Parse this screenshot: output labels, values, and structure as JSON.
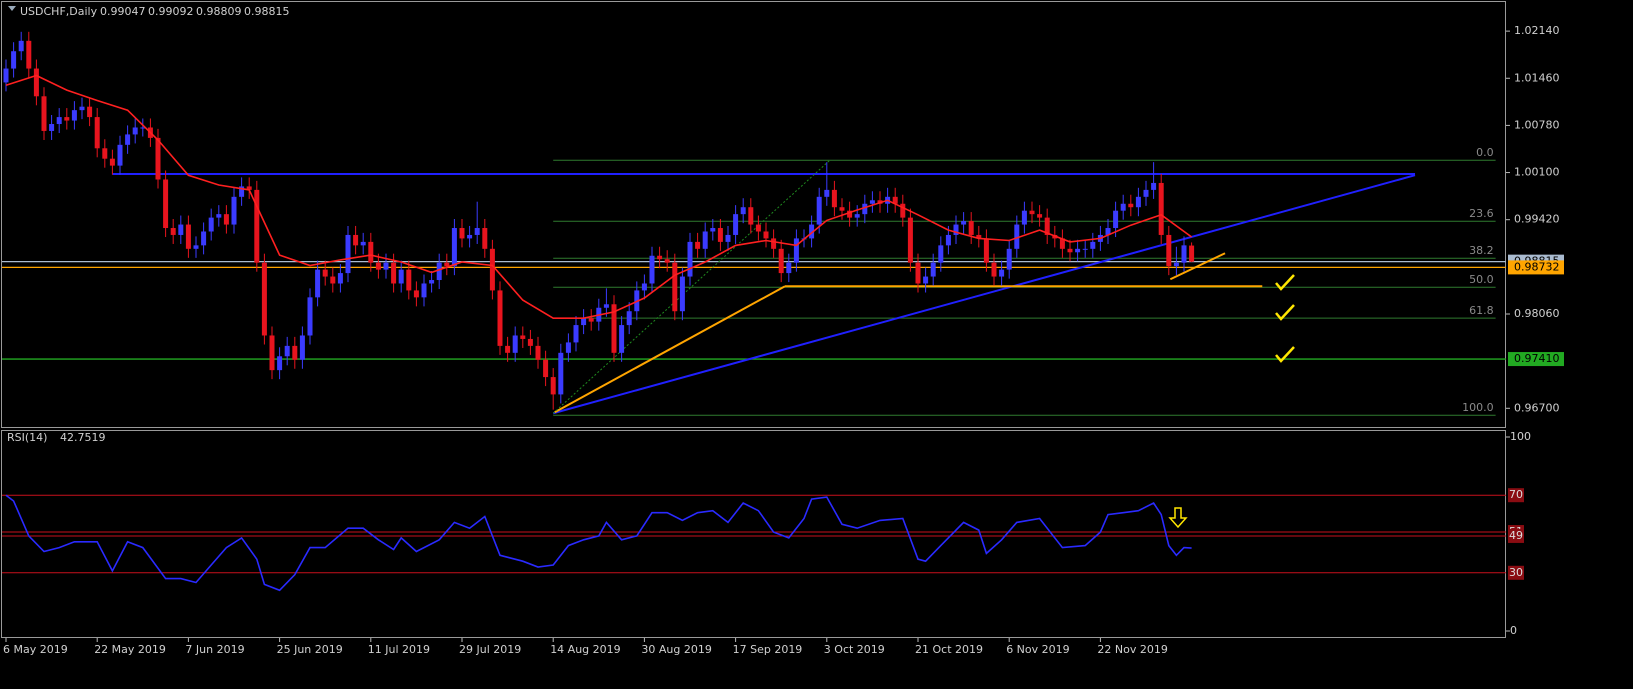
{
  "chart_data": {
    "type": "candlestick",
    "symbol": "USDCHF,Daily",
    "header_values": [
      0.99047,
      0.99092,
      0.98809,
      0.98815
    ],
    "ylim": [
      0.9643,
      1.0256
    ],
    "yticks": [
      {
        "value": 1.0214,
        "label": "1.02140"
      },
      {
        "value": 1.0146,
        "label": "1.01460"
      },
      {
        "value": 1.0078,
        "label": "1.00780"
      },
      {
        "value": 1.001,
        "label": "1.00100"
      },
      {
        "value": 0.9942,
        "label": "0.99420"
      },
      {
        "value": 0.9806,
        "label": "0.98060"
      },
      {
        "value": 0.967,
        "label": "0.96700"
      }
    ],
    "price_markers": [
      {
        "value": 0.98815,
        "label": "0.98815",
        "color": "#aabbd0"
      },
      {
        "value": 0.98732,
        "label": "0.98732",
        "color": "#ffa500"
      },
      {
        "value": 0.9741,
        "label": "0.97410",
        "color": "#22aa22"
      }
    ],
    "bull_color": "#3b3bff",
    "bear_color": "#e8141e",
    "candles": [
      [
        1.014,
        1.0173,
        1.0127,
        1.016
      ],
      [
        1.016,
        1.0198,
        1.0147,
        1.0185
      ],
      [
        1.0185,
        1.0213,
        1.0172,
        1.02
      ],
      [
        1.02,
        1.0213,
        1.0147,
        1.016
      ],
      [
        1.016,
        1.0173,
        1.0107,
        1.012
      ],
      [
        1.012,
        1.0133,
        1.0057,
        1.007
      ],
      [
        1.007,
        1.0093,
        1.0057,
        1.008
      ],
      [
        1.008,
        1.0103,
        1.0067,
        1.009
      ],
      [
        1.009,
        1.0103,
        1.0072,
        1.0085
      ],
      [
        1.0085,
        1.0113,
        1.0072,
        1.01
      ],
      [
        1.01,
        1.0118,
        1.0087,
        1.0105
      ],
      [
        1.0105,
        1.0118,
        1.0077,
        1.009
      ],
      [
        1.009,
        1.0103,
        1.0032,
        1.0045
      ],
      [
        1.0045,
        1.0058,
        1.0017,
        1.003
      ],
      [
        1.003,
        1.0043,
        1.0007,
        1.002
      ],
      [
        1.002,
        1.0063,
        1.0007,
        1.005
      ],
      [
        1.005,
        1.0078,
        1.0037,
        1.0065
      ],
      [
        1.0065,
        1.0088,
        1.0052,
        1.0075
      ],
      [
        1.0075,
        1.0088,
        1.0062,
        1.0075
      ],
      [
        1.0075,
        1.0088,
        1.0047,
        1.006
      ],
      [
        1.006,
        1.0073,
        0.9987,
        1.0
      ],
      [
        1.0,
        1.0013,
        0.9917,
        0.993
      ],
      [
        0.993,
        0.9943,
        0.9907,
        0.992
      ],
      [
        0.992,
        0.9948,
        0.9907,
        0.9935
      ],
      [
        0.9935,
        0.9948,
        0.9887,
        0.99
      ],
      [
        0.99,
        0.9918,
        0.9887,
        0.9905
      ],
      [
        0.9905,
        0.9938,
        0.9892,
        0.9925
      ],
      [
        0.9925,
        0.9958,
        0.9912,
        0.9945
      ],
      [
        0.9945,
        0.9963,
        0.9932,
        0.995
      ],
      [
        0.995,
        0.9963,
        0.9922,
        0.9935
      ],
      [
        0.9935,
        0.9988,
        0.9922,
        0.9975
      ],
      [
        0.9975,
        1.0003,
        0.9962,
        0.999
      ],
      [
        0.999,
        1.0003,
        0.9972,
        0.9985
      ],
      [
        0.9985,
        0.9998,
        0.9867,
        0.988
      ],
      [
        0.988,
        0.9893,
        0.9762,
        0.9775
      ],
      [
        0.9775,
        0.9788,
        0.9712,
        0.9725
      ],
      [
        0.9725,
        0.9758,
        0.9712,
        0.9745
      ],
      [
        0.9745,
        0.9773,
        0.9732,
        0.976
      ],
      [
        0.976,
        0.9773,
        0.9727,
        0.974
      ],
      [
        0.974,
        0.9788,
        0.9727,
        0.9775
      ],
      [
        0.9775,
        0.9843,
        0.9762,
        0.983
      ],
      [
        0.983,
        0.9883,
        0.9817,
        0.987
      ],
      [
        0.987,
        0.9883,
        0.9847,
        0.986
      ],
      [
        0.986,
        0.9873,
        0.9837,
        0.985
      ],
      [
        0.985,
        0.9878,
        0.9837,
        0.9865
      ],
      [
        0.9865,
        0.9933,
        0.9852,
        0.992
      ],
      [
        0.992,
        0.9933,
        0.9892,
        0.9905
      ],
      [
        0.9905,
        0.9923,
        0.9892,
        0.991
      ],
      [
        0.991,
        0.9923,
        0.9867,
        0.988
      ],
      [
        0.988,
        0.9893,
        0.9857,
        0.987
      ],
      [
        0.987,
        0.9893,
        0.9857,
        0.988
      ],
      [
        0.988,
        0.9893,
        0.9837,
        0.985
      ],
      [
        0.985,
        0.9883,
        0.9837,
        0.987
      ],
      [
        0.987,
        0.9883,
        0.9827,
        0.984
      ],
      [
        0.984,
        0.9853,
        0.9817,
        0.983
      ],
      [
        0.983,
        0.9863,
        0.9817,
        0.985
      ],
      [
        0.985,
        0.9868,
        0.9837,
        0.9855
      ],
      [
        0.9855,
        0.9893,
        0.9842,
        0.988
      ],
      [
        0.988,
        0.9893,
        0.9862,
        0.9875
      ],
      [
        0.9875,
        0.9943,
        0.9862,
        0.993
      ],
      [
        0.993,
        0.9943,
        0.9902,
        0.9915
      ],
      [
        0.9915,
        0.9933,
        0.9902,
        0.992
      ],
      [
        0.992,
        0.9968,
        0.9907,
        0.993
      ],
      [
        0.993,
        0.9943,
        0.9887,
        0.99
      ],
      [
        0.99,
        0.9913,
        0.9827,
        0.984
      ],
      [
        0.984,
        0.9853,
        0.9747,
        0.976
      ],
      [
        0.976,
        0.9773,
        0.9737,
        0.975
      ],
      [
        0.975,
        0.9788,
        0.9737,
        0.9775
      ],
      [
        0.9775,
        0.9788,
        0.9757,
        0.977
      ],
      [
        0.977,
        0.9783,
        0.9747,
        0.976
      ],
      [
        0.976,
        0.9773,
        0.9727,
        0.974
      ],
      [
        0.974,
        0.9753,
        0.9702,
        0.9715
      ],
      [
        0.9715,
        0.9728,
        0.9668,
        0.969
      ],
      [
        0.969,
        0.9763,
        0.9677,
        0.975
      ],
      [
        0.975,
        0.9778,
        0.9737,
        0.9765
      ],
      [
        0.9765,
        0.9803,
        0.9752,
        0.979
      ],
      [
        0.979,
        0.9813,
        0.9777,
        0.98
      ],
      [
        0.98,
        0.9813,
        0.9782,
        0.9795
      ],
      [
        0.9795,
        0.9828,
        0.9782,
        0.9815
      ],
      [
        0.9815,
        0.9843,
        0.9802,
        0.982
      ],
      [
        0.982,
        0.9833,
        0.9737,
        0.975
      ],
      [
        0.975,
        0.9803,
        0.9737,
        0.979
      ],
      [
        0.979,
        0.9823,
        0.9777,
        0.981
      ],
      [
        0.981,
        0.9853,
        0.9797,
        0.984
      ],
      [
        0.984,
        0.9863,
        0.9827,
        0.985
      ],
      [
        0.985,
        0.9903,
        0.9837,
        0.989
      ],
      [
        0.989,
        0.9903,
        0.9872,
        0.9885
      ],
      [
        0.9885,
        0.9898,
        0.9867,
        0.988
      ],
      [
        0.988,
        0.9893,
        0.9797,
        0.981
      ],
      [
        0.981,
        0.9873,
        0.9797,
        0.986
      ],
      [
        0.986,
        0.9923,
        0.9847,
        0.991
      ],
      [
        0.991,
        0.9923,
        0.9887,
        0.99
      ],
      [
        0.99,
        0.9938,
        0.9887,
        0.9925
      ],
      [
        0.9925,
        0.9943,
        0.9912,
        0.993
      ],
      [
        0.993,
        0.9943,
        0.9897,
        0.991
      ],
      [
        0.991,
        0.9933,
        0.9897,
        0.992
      ],
      [
        0.992,
        0.9963,
        0.9907,
        0.995
      ],
      [
        0.995,
        0.9973,
        0.9937,
        0.996
      ],
      [
        0.996,
        0.9973,
        0.9922,
        0.9935
      ],
      [
        0.9935,
        0.9948,
        0.9912,
        0.9925
      ],
      [
        0.9925,
        0.9938,
        0.9902,
        0.9915
      ],
      [
        0.9915,
        0.9928,
        0.9887,
        0.99
      ],
      [
        0.99,
        0.9913,
        0.9852,
        0.9865
      ],
      [
        0.9865,
        0.9893,
        0.9852,
        0.988
      ],
      [
        0.988,
        0.9928,
        0.9867,
        0.9915
      ],
      [
        0.9915,
        0.9928,
        0.9902,
        0.9915
      ],
      [
        0.9915,
        0.9948,
        0.9902,
        0.9935
      ],
      [
        0.9935,
        0.9988,
        0.9922,
        0.9975
      ],
      [
        0.9975,
        1.0025,
        0.9962,
        0.9985
      ],
      [
        0.9985,
        0.9998,
        0.9947,
        0.996
      ],
      [
        0.996,
        0.9973,
        0.9942,
        0.9955
      ],
      [
        0.9955,
        0.9968,
        0.9932,
        0.9945
      ],
      [
        0.9945,
        0.9963,
        0.9932,
        0.995
      ],
      [
        0.995,
        0.9978,
        0.9937,
        0.9965
      ],
      [
        0.9965,
        0.9983,
        0.9952,
        0.997
      ],
      [
        0.997,
        0.9983,
        0.9952,
        0.9965
      ],
      [
        0.9965,
        0.9988,
        0.9952,
        0.9975
      ],
      [
        0.9975,
        0.9988,
        0.9952,
        0.9965
      ],
      [
        0.9965,
        0.9978,
        0.9932,
        0.9945
      ],
      [
        0.9945,
        0.9958,
        0.9867,
        0.988
      ],
      [
        0.988,
        0.9893,
        0.9837,
        0.985
      ],
      [
        0.985,
        0.9873,
        0.9837,
        0.986
      ],
      [
        0.986,
        0.9893,
        0.9847,
        0.988
      ],
      [
        0.988,
        0.9918,
        0.9867,
        0.9905
      ],
      [
        0.9905,
        0.9933,
        0.9892,
        0.992
      ],
      [
        0.992,
        0.9948,
        0.9907,
        0.9935
      ],
      [
        0.9935,
        0.9953,
        0.9922,
        0.994
      ],
      [
        0.994,
        0.9953,
        0.9907,
        0.992
      ],
      [
        0.992,
        0.9933,
        0.9902,
        0.9915
      ],
      [
        0.9915,
        0.9928,
        0.9867,
        0.988
      ],
      [
        0.988,
        0.9893,
        0.9847,
        0.986
      ],
      [
        0.986,
        0.9883,
        0.9847,
        0.987
      ],
      [
        0.987,
        0.9913,
        0.9857,
        0.99
      ],
      [
        0.99,
        0.9948,
        0.9887,
        0.9935
      ],
      [
        0.9935,
        0.9968,
        0.9922,
        0.9955
      ],
      [
        0.9955,
        0.9968,
        0.9937,
        0.995
      ],
      [
        0.995,
        0.9963,
        0.9932,
        0.9945
      ],
      [
        0.9945,
        0.9958,
        0.9907,
        0.992
      ],
      [
        0.992,
        0.9933,
        0.9902,
        0.9915
      ],
      [
        0.9915,
        0.9928,
        0.9887,
        0.99
      ],
      [
        0.99,
        0.9913,
        0.9882,
        0.9895
      ],
      [
        0.9895,
        0.9913,
        0.9882,
        0.99
      ],
      [
        0.99,
        0.9913,
        0.9887,
        0.99
      ],
      [
        0.99,
        0.9923,
        0.9887,
        0.991
      ],
      [
        0.991,
        0.9933,
        0.9897,
        0.992
      ],
      [
        0.992,
        0.9943,
        0.9907,
        0.993
      ],
      [
        0.993,
        0.9968,
        0.9917,
        0.9955
      ],
      [
        0.9955,
        0.9978,
        0.9942,
        0.9965
      ],
      [
        0.9965,
        0.9978,
        0.9947,
        0.996
      ],
      [
        0.996,
        0.9988,
        0.9947,
        0.9975
      ],
      [
        0.9975,
        0.9998,
        0.9962,
        0.9985
      ],
      [
        0.9985,
        1.0025,
        0.9972,
        0.9995
      ],
      [
        0.9995,
        1.0008,
        0.9907,
        0.992
      ],
      [
        0.992,
        0.9933,
        0.9862,
        0.9875
      ],
      [
        0.9875,
        0.9903,
        0.9862,
        0.988
      ],
      [
        0.988,
        0.9918,
        0.9867,
        0.9905
      ],
      [
        0.99047,
        0.99092,
        0.98809,
        0.98815
      ]
    ],
    "ma": {
      "color": "#ff2020",
      "x": [
        0,
        4,
        8,
        12,
        16,
        20,
        24,
        28,
        32,
        36,
        40,
        44,
        48,
        52,
        56,
        60,
        64,
        68,
        72,
        76,
        80,
        84,
        88,
        92,
        96,
        100,
        104,
        108,
        112,
        116,
        120,
        124,
        128,
        132,
        136,
        140,
        144,
        148,
        152,
        156
      ],
      "values": [
        1.0136,
        1.015,
        1.0129,
        1.0114,
        1.01,
        1.0057,
        1.0006,
        0.9992,
        0.9985,
        0.9891,
        0.9876,
        0.9884,
        0.9891,
        0.9881,
        0.9866,
        0.9881,
        0.9876,
        0.9826,
        0.98,
        0.98,
        0.9809,
        0.9829,
        0.9862,
        0.9881,
        0.9905,
        0.9912,
        0.9905,
        0.9941,
        0.9956,
        0.997,
        0.9949,
        0.9927,
        0.9915,
        0.9912,
        0.9927,
        0.991,
        0.9915,
        0.9934,
        0.9949,
        0.9917
      ]
    },
    "drawings": [
      {
        "color": "#2020ff",
        "from": [
          14,
          1.0008
        ],
        "to": [
          185.4,
          1.0008
        ]
      },
      {
        "color": "#2020ff",
        "from": [
          72,
          0.96628
        ],
        "to": [
          185.4,
          1.00062
        ]
      },
      {
        "color": "#ffa500",
        "from": [
          72.2,
          0.96643
        ],
        "to": [
          102.5,
          0.9846
        ]
      },
      {
        "color": "#ffa500",
        "from": [
          102.5,
          0.9846
        ],
        "to": [
          165.3,
          0.9846
        ]
      },
      {
        "color": "#ffa500",
        "from": [
          153.2,
          0.98561
        ],
        "to": [
          160.4,
          0.98936
        ]
      },
      {
        "color": "#1f8a1f",
        "from": [
          72,
          0.96628
        ],
        "to": [
          108.4,
          1.00278
        ],
        "dashed": true
      }
    ],
    "fib": {
      "color": "#2f7a2f",
      "from": 72,
      "to": 196,
      "levels": [
        {
          "ratio": {
            "value": 0,
            "label": "0.0"
          },
          "price": 1.00278
        },
        {
          "ratio": 23.6,
          "price": 0.99398
        },
        {
          "ratio": 38.2,
          "price": 0.98864
        },
        {
          "ratio": {
            "value": 50,
            "label": "50.0"
          },
          "price": 0.98446
        },
        {
          "ratio": 61.8,
          "price": 0.98
        },
        {
          "ratio": {
            "value": 100,
            "label": "100.0"
          },
          "price": 0.966
        }
      ]
    },
    "date_labels": [
      "6 May 2019",
      "22 May 2019",
      "7 Jun 2019",
      "25 Jun 2019",
      "11 Jul 2019",
      "29 Jul 2019",
      "14 Aug 2019",
      "30 Aug 2019",
      "17 Sep 2019",
      "3 Oct 2019",
      "21 Oct 2019",
      "6 Nov 2019",
      "22 Nov 2019"
    ],
    "rsi": {
      "title": "RSI(14)",
      "last": 42.7519,
      "color": "#2a2aff",
      "ylim": [
        0,
        100
      ],
      "yticks": [
        100,
        0
      ],
      "levels": [
        70,
        51,
        49,
        30
      ],
      "level_color": "#c8101c",
      "x": [
        0,
        1,
        3,
        5,
        7,
        9,
        12,
        14,
        16,
        18,
        21,
        23,
        25,
        27,
        29,
        31,
        33,
        34,
        36,
        38,
        40,
        42,
        45,
        47,
        49,
        51,
        52,
        54,
        57,
        59,
        61,
        63,
        65,
        68,
        70,
        72,
        74,
        76,
        78,
        79,
        81,
        83,
        85,
        87,
        89,
        91,
        93,
        95,
        97,
        99,
        101,
        103,
        105,
        106,
        108,
        110,
        112,
        115,
        118,
        120,
        121,
        123,
        126,
        128,
        129,
        131,
        133,
        136,
        139,
        142,
        144,
        145,
        147,
        149,
        151,
        152,
        153,
        154,
        155,
        156
      ],
      "values": [
        70,
        67,
        49,
        41,
        43,
        46,
        46,
        31,
        46,
        43,
        27,
        27,
        25,
        34,
        43,
        48,
        37,
        24,
        21,
        29,
        43,
        43,
        53,
        53,
        47,
        42,
        48,
        41,
        47,
        56,
        53,
        59,
        39,
        36,
        33,
        34,
        44,
        47,
        49,
        56,
        47,
        49,
        61,
        61,
        57,
        61,
        62,
        56,
        66,
        62,
        51,
        48,
        58,
        68,
        69,
        55,
        53,
        57,
        58,
        37,
        36,
        44,
        56,
        52,
        40,
        47,
        56,
        58,
        43,
        44,
        51,
        60,
        61,
        62,
        66,
        60,
        44,
        39,
        43,
        42.7519
      ]
    }
  }
}
